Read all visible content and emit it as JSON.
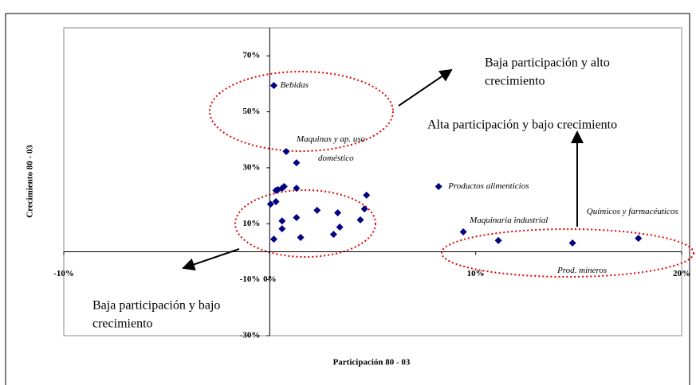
{
  "chart_data": {
    "type": "scatter",
    "x_label": "Participación 80 - 03",
    "y_label": "Crecimiento 80 - 03",
    "color": "#000080",
    "x": [
      0.2,
      0.8,
      1.3,
      0.3,
      0.4,
      0.6,
      0.7,
      1.3,
      0.04,
      0.3,
      2.3,
      3.3,
      1.3,
      0.6,
      4.4,
      4.6,
      4.7,
      3.4,
      3.1,
      0.6,
      0.2,
      1.5,
      8.2,
      9.4,
      11.1,
      14.7,
      17.9
    ],
    "y": [
      59.4,
      35.8,
      31.8,
      21.9,
      22.2,
      22.7,
      23.3,
      22.7,
      17,
      17.9,
      14.8,
      13.9,
      12.2,
      11,
      11.4,
      15.3,
      20.2,
      8.8,
      6.2,
      8.2,
      4.5,
      5.1,
      23.3,
      7.1,
      4.0,
      3.1,
      4.8
    ],
    "point_labels": [
      "Bebidas",
      [
        "Maquinas y ap. uso",
        "doméstico"
      ],
      null,
      null,
      null,
      null,
      null,
      null,
      null,
      null,
      null,
      null,
      null,
      null,
      null,
      null,
      null,
      null,
      null,
      null,
      null,
      null,
      "Productos alimenticios",
      "Maquinaria industrial",
      null,
      "Prod. mineros",
      "Químicos y farmacéuticos"
    ],
    "xlim": [
      -10,
      20
    ],
    "ylim": [
      -30,
      80
    ],
    "xticks": [
      {
        "value": -10,
        "label": "-10%"
      },
      {
        "value": 0,
        "label": "0%"
      },
      {
        "value": 10,
        "label": "10%"
      },
      {
        "value": 20,
        "label": "20%"
      }
    ],
    "yticks": [
      {
        "value": -30,
        "label": "-30%"
      },
      {
        "value": -10,
        "label": "-10%"
      },
      {
        "value": 10,
        "label": "10%"
      },
      {
        "value": 30,
        "label": "30%"
      },
      {
        "value": 50,
        "label": "50%"
      },
      {
        "value": 70,
        "label": "70%"
      }
    ],
    "annotations": [
      [
        "Baja participación  y alto",
        "crecimiento"
      ],
      [
        "Alta participación  y bajo crecimiento"
      ],
      [
        "Baja participación  y bajo",
        "crecimiento"
      ]
    ]
  }
}
